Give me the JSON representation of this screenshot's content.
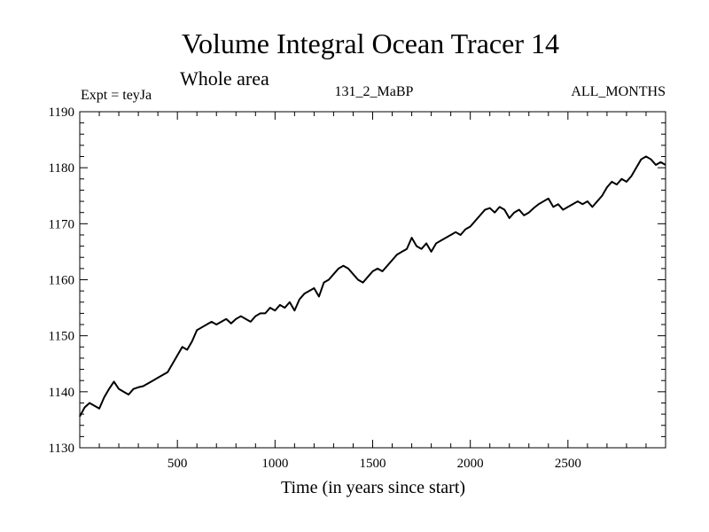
{
  "chart_data": {
    "type": "line",
    "title": "Volume Integral Ocean Tracer 14",
    "subtitle": "Whole area",
    "experiment_label": "Expt = teyJa",
    "run_label": "131_2_MaBP",
    "period_label": "ALL_MONTHS",
    "xlabel": "Time (in years since start)",
    "ylabel": "",
    "xlim": [
      0,
      3000
    ],
    "ylim": [
      1130,
      1190
    ],
    "x_ticks": [
      500,
      1000,
      1500,
      2000,
      2500
    ],
    "y_ticks": [
      1130,
      1140,
      1150,
      1160,
      1170,
      1180,
      1190
    ],
    "grid": false,
    "series": [
      {
        "name": "Tracer 14",
        "x": [
          0,
          25,
          50,
          75,
          100,
          125,
          150,
          175,
          200,
          225,
          250,
          275,
          300,
          325,
          350,
          375,
          400,
          425,
          450,
          475,
          500,
          525,
          550,
          575,
          600,
          625,
          650,
          675,
          700,
          725,
          750,
          775,
          800,
          825,
          850,
          875,
          900,
          925,
          950,
          975,
          1000,
          1025,
          1050,
          1075,
          1100,
          1125,
          1150,
          1175,
          1200,
          1225,
          1250,
          1275,
          1300,
          1325,
          1350,
          1375,
          1400,
          1425,
          1450,
          1475,
          1500,
          1525,
          1550,
          1575,
          1600,
          1625,
          1650,
          1675,
          1700,
          1725,
          1750,
          1775,
          1800,
          1825,
          1850,
          1875,
          1900,
          1925,
          1950,
          1975,
          2000,
          2025,
          2050,
          2075,
          2100,
          2125,
          2150,
          2175,
          2200,
          2225,
          2250,
          2275,
          2300,
          2325,
          2350,
          2375,
          2400,
          2425,
          2450,
          2475,
          2500,
          2525,
          2550,
          2575,
          2600,
          2625,
          2650,
          2675,
          2700,
          2725,
          2750,
          2775,
          2800,
          2825,
          2850,
          2875,
          2900,
          2925,
          2950,
          2975,
          3000
        ],
        "values": [
          1135.6,
          1137.2,
          1138.0,
          1137.5,
          1137.0,
          1139.0,
          1140.5,
          1141.8,
          1140.5,
          1140.0,
          1139.5,
          1140.5,
          1140.8,
          1141.0,
          1141.5,
          1142.0,
          1142.5,
          1143.0,
          1143.5,
          1145.0,
          1146.5,
          1148.0,
          1147.5,
          1149.0,
          1151.0,
          1151.5,
          1152.0,
          1152.5,
          1152.0,
          1152.5,
          1153.0,
          1152.2,
          1153.0,
          1153.5,
          1153.0,
          1152.5,
          1153.5,
          1154.0,
          1154.0,
          1155.0,
          1154.5,
          1155.5,
          1155.0,
          1156.0,
          1154.5,
          1156.5,
          1157.5,
          1158.0,
          1158.5,
          1157.0,
          1159.5,
          1160.0,
          1161.0,
          1162.0,
          1162.5,
          1162.0,
          1161.0,
          1160.0,
          1159.5,
          1160.5,
          1161.5,
          1162.0,
          1161.5,
          1162.5,
          1163.5,
          1164.5,
          1165.0,
          1165.5,
          1167.5,
          1166.0,
          1165.5,
          1166.5,
          1165.0,
          1166.5,
          1167.0,
          1167.5,
          1168.0,
          1168.5,
          1168.0,
          1169.0,
          1169.5,
          1170.5,
          1171.5,
          1172.5,
          1172.8,
          1172.0,
          1173.0,
          1172.5,
          1171.0,
          1172.0,
          1172.5,
          1171.5,
          1172.0,
          1172.8,
          1173.5,
          1174.0,
          1174.5,
          1173.0,
          1173.5,
          1172.5,
          1173.0,
          1173.5,
          1174.0,
          1173.5,
          1174.0,
          1173.0,
          1174.0,
          1175.0,
          1176.5,
          1177.5,
          1177.0,
          1178.0,
          1177.5,
          1178.5,
          1180.0,
          1181.5,
          1182.0,
          1181.5,
          1180.5,
          1181.0,
          1180.5
        ]
      }
    ]
  }
}
